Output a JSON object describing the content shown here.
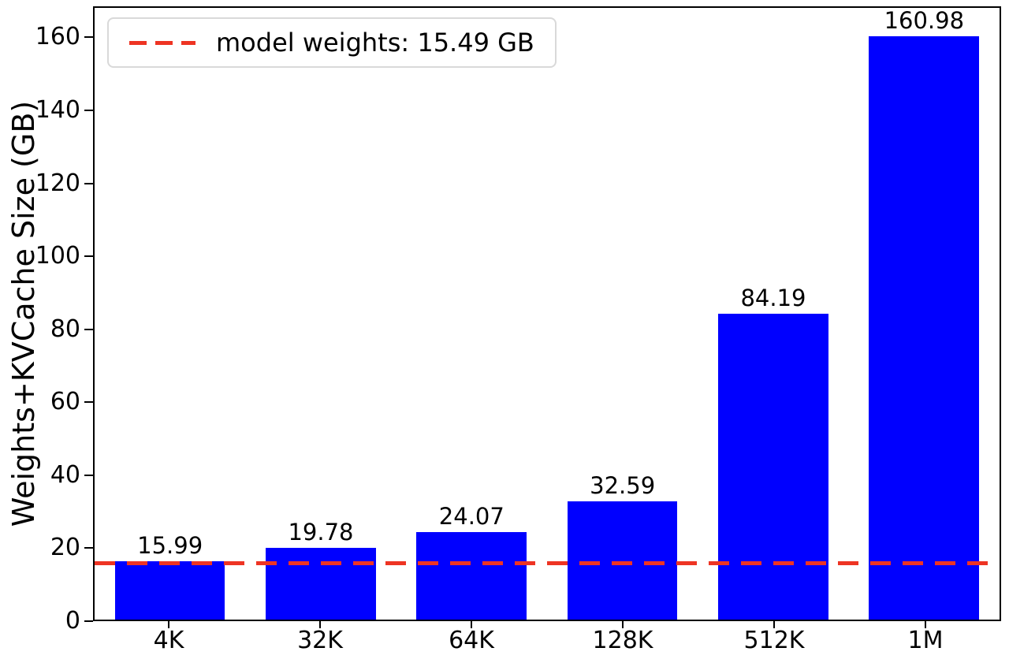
{
  "chart_data": {
    "type": "bar",
    "title": "",
    "categories": [
      "4K",
      "32K",
      "64K",
      "128K",
      "512K",
      "1M"
    ],
    "values": [
      15.99,
      19.78,
      24.07,
      32.59,
      84.19,
      160.98
    ],
    "xlabel": "",
    "ylabel": "Weights+KVCache Size (GB)",
    "ylim": [
      0,
      168.5
    ],
    "yticks": [
      0,
      20,
      40,
      60,
      80,
      100,
      120,
      140,
      160
    ],
    "grid": false,
    "bar_color": "#0000ff",
    "axis_color": "#000000",
    "legend": {
      "position": "upper-left",
      "entries": [
        {
          "label": "model weights: 15.49 GB",
          "style": "dashed-line",
          "color": "#ee3423"
        }
      ]
    },
    "reference_line": {
      "value": 15.49,
      "color": "#ee3423",
      "style": "dashed"
    }
  }
}
